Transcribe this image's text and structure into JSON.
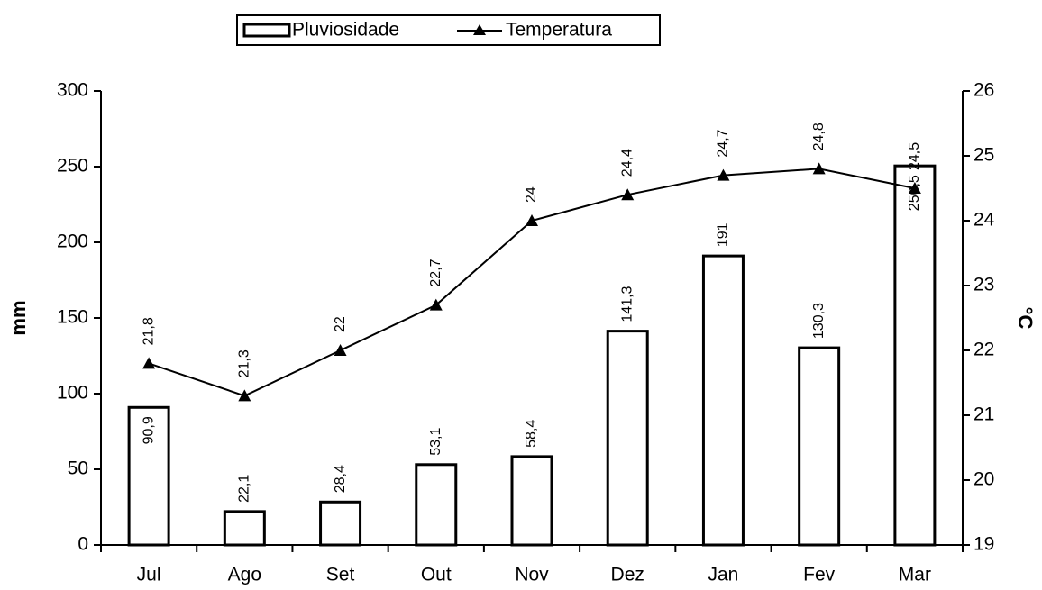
{
  "chart_data": {
    "type": "bar",
    "categories": [
      "Jul",
      "Ago",
      "Set",
      "Out",
      "Nov",
      "Dez",
      "Jan",
      "Fev",
      "Mar"
    ],
    "series": [
      {
        "name": "Pluviosidade",
        "type": "bar",
        "color": "#ffffff",
        "values": [
          90.9,
          22.1,
          28.4,
          53.1,
          58.4,
          141.3,
          191,
          130.3,
          250.5
        ],
        "value_labels": [
          "90,9",
          "22,1",
          "28,4",
          "53,1",
          "58,4",
          "141,3",
          "191",
          "130,3",
          "250,5"
        ]
      },
      {
        "name": "Temperatura",
        "type": "line",
        "axis": "y2",
        "color": "#000000",
        "values": [
          21.8,
          21.3,
          22,
          22.7,
          24,
          24.4,
          24.7,
          24.8,
          24.5
        ],
        "value_labels": [
          "21,8",
          "21,3",
          "22",
          "22,7",
          "24",
          "24,4",
          "24,7",
          "24,8",
          "24,5"
        ]
      }
    ],
    "ylabel": "mm",
    "y2label": "°C",
    "ylim": [
      0,
      300
    ],
    "yticks": [
      0,
      50,
      100,
      150,
      200,
      250,
      300
    ],
    "y2lim": [
      19,
      26
    ],
    "y2ticks": [
      19,
      20,
      21,
      22,
      23,
      24,
      25,
      26
    ],
    "legend": "top"
  }
}
